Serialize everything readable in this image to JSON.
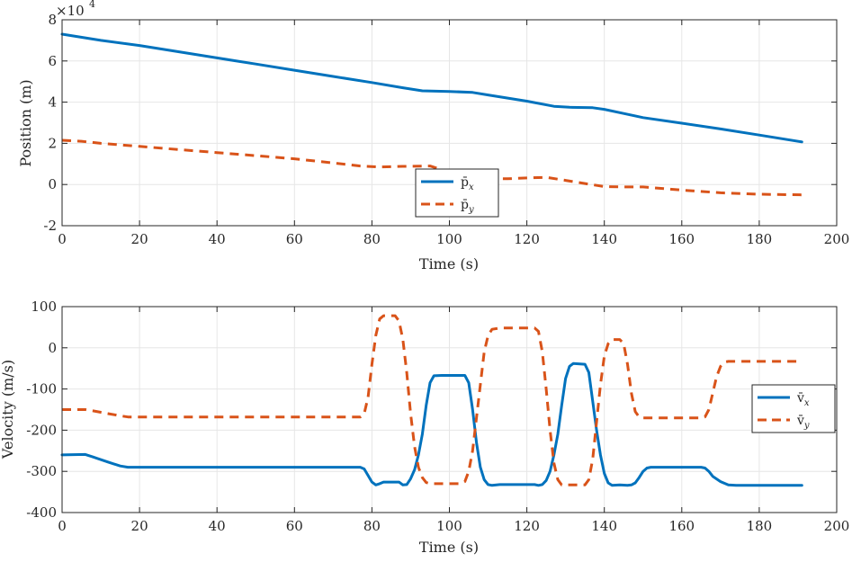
{
  "chart_data": [
    {
      "type": "line",
      "id": "position",
      "title": "",
      "xlabel": "Time (s)",
      "ylabel": "Position (m)",
      "y_exponent_label": "×10",
      "y_exponent_power": "4",
      "xlim": [
        0,
        200
      ],
      "ylim": [
        -2,
        8
      ],
      "x_ticks": [
        0,
        20,
        40,
        60,
        80,
        100,
        120,
        140,
        160,
        180,
        200
      ],
      "y_ticks": [
        -2,
        0,
        2,
        4,
        6,
        8
      ],
      "grid": true,
      "legend_position": "center-bottom",
      "series": [
        {
          "name": "p̄",
          "subscript": "x",
          "color": "#0072BD",
          "style": "solid",
          "points": [
            [
              0,
              7.3
            ],
            [
              10,
              7.0
            ],
            [
              20,
              6.75
            ],
            [
              30,
              6.45
            ],
            [
              40,
              6.15
            ],
            [
              50,
              5.85
            ],
            [
              60,
              5.55
            ],
            [
              70,
              5.25
            ],
            [
              80,
              4.95
            ],
            [
              88,
              4.7
            ],
            [
              93,
              4.55
            ],
            [
              100,
              4.52
            ],
            [
              106,
              4.47
            ],
            [
              110,
              4.35
            ],
            [
              120,
              4.05
            ],
            [
              127,
              3.8
            ],
            [
              131,
              3.75
            ],
            [
              137,
              3.73
            ],
            [
              140,
              3.65
            ],
            [
              145,
              3.45
            ],
            [
              150,
              3.25
            ],
            [
              160,
              2.98
            ],
            [
              170,
              2.7
            ],
            [
              180,
              2.4
            ],
            [
              191,
              2.07
            ]
          ]
        },
        {
          "name": "p̄",
          "subscript": "y",
          "color": "#D95319",
          "style": "dashed",
          "points": [
            [
              0,
              2.15
            ],
            [
              5,
              2.1
            ],
            [
              10,
              2.0
            ],
            [
              20,
              1.85
            ],
            [
              30,
              1.7
            ],
            [
              40,
              1.55
            ],
            [
              50,
              1.4
            ],
            [
              60,
              1.25
            ],
            [
              70,
              1.05
            ],
            [
              77,
              0.9
            ],
            [
              82,
              0.85
            ],
            [
              88,
              0.88
            ],
            [
              95,
              0.9
            ],
            [
              100,
              0.6
            ],
            [
              108,
              0.3
            ],
            [
              115,
              0.28
            ],
            [
              120,
              0.32
            ],
            [
              125,
              0.35
            ],
            [
              130,
              0.2
            ],
            [
              135,
              0.05
            ],
            [
              140,
              -0.1
            ],
            [
              145,
              -0.12
            ],
            [
              150,
              -0.12
            ],
            [
              160,
              -0.27
            ],
            [
              170,
              -0.4
            ],
            [
              180,
              -0.47
            ],
            [
              191,
              -0.5
            ]
          ]
        }
      ]
    },
    {
      "type": "line",
      "id": "velocity",
      "title": "",
      "xlabel": "Time (s)",
      "ylabel": "Velocity (m/s)",
      "xlim": [
        0,
        200
      ],
      "ylim": [
        -400,
        100
      ],
      "x_ticks": [
        0,
        20,
        40,
        60,
        80,
        100,
        120,
        140,
        160,
        180,
        200
      ],
      "y_ticks": [
        -400,
        -300,
        -200,
        -100,
        0,
        100
      ],
      "grid": true,
      "legend_position": "right",
      "series": [
        {
          "name": "v̄",
          "subscript": "x",
          "color": "#0072BD",
          "style": "solid",
          "points": [
            [
              0,
              -260
            ],
            [
              6,
              -259
            ],
            [
              8,
              -265
            ],
            [
              12,
              -278
            ],
            [
              15,
              -287
            ],
            [
              17,
              -290
            ],
            [
              77,
              -290
            ],
            [
              78,
              -294
            ],
            [
              79,
              -310
            ],
            [
              80,
              -326
            ],
            [
              81,
              -333
            ],
            [
              82,
              -330
            ],
            [
              83,
              -326
            ],
            [
              87,
              -326
            ],
            [
              88,
              -333
            ],
            [
              89,
              -332
            ],
            [
              90,
              -318
            ],
            [
              91,
              -296
            ],
            [
              92,
              -260
            ],
            [
              93,
              -210
            ],
            [
              94,
              -140
            ],
            [
              95,
              -85
            ],
            [
              96,
              -68
            ],
            [
              98,
              -67
            ],
            [
              104,
              -67
            ],
            [
              105,
              -85
            ],
            [
              106,
              -150
            ],
            [
              107,
              -230
            ],
            [
              108,
              -290
            ],
            [
              109,
              -320
            ],
            [
              110,
              -332
            ],
            [
              111,
              -334
            ],
            [
              113,
              -332
            ],
            [
              122,
              -332
            ],
            [
              123,
              -334
            ],
            [
              124,
              -332
            ],
            [
              125,
              -322
            ],
            [
              126,
              -300
            ],
            [
              127,
              -260
            ],
            [
              128,
              -210
            ],
            [
              129,
              -140
            ],
            [
              130,
              -75
            ],
            [
              131,
              -45
            ],
            [
              132,
              -38
            ],
            [
              135,
              -40
            ],
            [
              136,
              -60
            ],
            [
              137,
              -130
            ],
            [
              138,
              -200
            ],
            [
              139,
              -260
            ],
            [
              140,
              -305
            ],
            [
              141,
              -328
            ],
            [
              142,
              -334
            ],
            [
              144,
              -333
            ],
            [
              146,
              -334
            ],
            [
              147,
              -333
            ],
            [
              148,
              -328
            ],
            [
              149,
              -315
            ],
            [
              150,
              -300
            ],
            [
              151,
              -292
            ],
            [
              152,
              -290
            ],
            [
              165,
              -290
            ],
            [
              166,
              -292
            ],
            [
              167,
              -300
            ],
            [
              168,
              -312
            ],
            [
              170,
              -325
            ],
            [
              172,
              -333
            ],
            [
              174,
              -334
            ],
            [
              191,
              -334
            ]
          ]
        },
        {
          "name": "v̄",
          "subscript": "y",
          "color": "#D95319",
          "style": "dashed",
          "points": [
            [
              0,
              -150
            ],
            [
              6,
              -150
            ],
            [
              8,
              -153
            ],
            [
              12,
              -160
            ],
            [
              15,
              -165
            ],
            [
              17,
              -168
            ],
            [
              77,
              -168
            ],
            [
              78,
              -160
            ],
            [
              79,
              -120
            ],
            [
              80,
              -40
            ],
            [
              81,
              30
            ],
            [
              82,
              70
            ],
            [
              83,
              78
            ],
            [
              86,
              78
            ],
            [
              87,
              65
            ],
            [
              88,
              20
            ],
            [
              89,
              -60
            ],
            [
              90,
              -160
            ],
            [
              91,
              -240
            ],
            [
              92,
              -290
            ],
            [
              93,
              -315
            ],
            [
              94,
              -327
            ],
            [
              95,
              -330
            ],
            [
              103,
              -330
            ],
            [
              104,
              -325
            ],
            [
              105,
              -300
            ],
            [
              106,
              -250
            ],
            [
              107,
              -170
            ],
            [
              108,
              -90
            ],
            [
              109,
              -10
            ],
            [
              110,
              30
            ],
            [
              111,
              45
            ],
            [
              113,
              48
            ],
            [
              122,
              48
            ],
            [
              123,
              40
            ],
            [
              124,
              -10
            ],
            [
              125,
              -100
            ],
            [
              126,
              -200
            ],
            [
              127,
              -280
            ],
            [
              128,
              -320
            ],
            [
              129,
              -333
            ],
            [
              135,
              -333
            ],
            [
              136,
              -320
            ],
            [
              137,
              -270
            ],
            [
              138,
              -180
            ],
            [
              139,
              -90
            ],
            [
              140,
              -20
            ],
            [
              141,
              10
            ],
            [
              142,
              20
            ],
            [
              144,
              20
            ],
            [
              145,
              10
            ],
            [
              146,
              -40
            ],
            [
              147,
              -110
            ],
            [
              148,
              -155
            ],
            [
              149,
              -168
            ],
            [
              150,
              -170
            ],
            [
              165,
              -170
            ],
            [
              166,
              -168
            ],
            [
              167,
              -150
            ],
            [
              168,
              -110
            ],
            [
              169,
              -70
            ],
            [
              170,
              -45
            ],
            [
              171,
              -35
            ],
            [
              172,
              -33
            ],
            [
              191,
              -33
            ]
          ]
        }
      ]
    }
  ]
}
